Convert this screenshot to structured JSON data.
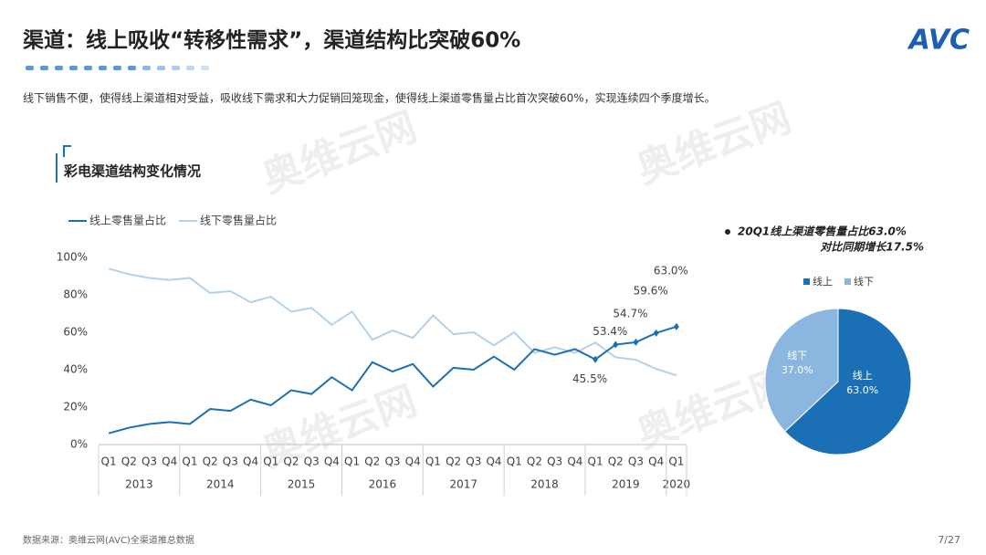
{
  "header": {
    "title": "渠道：线上吸收“转移性需求”，渠道结构比突破60%",
    "logo": "AVC"
  },
  "subtitle": "线下销售不便，使得线上渠道相对受益，吸收线下需求和大力促销回笼现金，使得线上渠道零售量占比首次突破60%，实现连续四个季度增长。",
  "watermark": "奥维云网",
  "chart_data": [
    {
      "type": "line",
      "title": "彩电渠道结构变化情况",
      "categories": [
        "Q1",
        "Q2",
        "Q3",
        "Q4",
        "Q1",
        "Q2",
        "Q3",
        "Q4",
        "Q1",
        "Q2",
        "Q3",
        "Q4",
        "Q1",
        "Q2",
        "Q3",
        "Q4",
        "Q1",
        "Q2",
        "Q3",
        "Q4",
        "Q1",
        "Q2",
        "Q3",
        "Q4",
        "Q1",
        "Q2",
        "Q3",
        "Q4",
        "Q1"
      ],
      "years": [
        "2013",
        "2014",
        "2015",
        "2016",
        "2017",
        "2018",
        "2019",
        "2020"
      ],
      "series": [
        {
          "name": "线上零售量占比",
          "color": "#1a6fb5",
          "values": [
            6,
            9,
            11,
            12,
            11,
            19,
            18,
            24,
            21,
            29,
            27,
            36,
            29,
            44,
            39,
            43,
            31,
            41,
            40,
            47,
            40,
            51,
            48,
            51,
            45.5,
            53.4,
            54.7,
            59.6,
            63.0
          ],
          "value_labels": [
            null,
            null,
            null,
            null,
            null,
            null,
            null,
            null,
            null,
            null,
            null,
            null,
            null,
            null,
            null,
            null,
            null,
            null,
            null,
            null,
            null,
            null,
            null,
            null,
            "45.5%",
            "53.4%",
            "54.7%",
            "59.6%",
            "63.0%"
          ]
        },
        {
          "name": "线下零售量占比",
          "color": "#b3d1ea",
          "values": [
            94,
            91,
            89,
            88,
            89,
            81,
            82,
            76,
            79,
            71,
            73,
            64,
            71,
            56,
            61,
            57,
            69,
            59,
            60,
            53,
            60,
            49,
            52,
            49,
            54.5,
            46.6,
            45.3,
            40.4,
            37.0
          ]
        }
      ],
      "ylim": [
        0,
        100
      ],
      "yticks": [
        {
          "value": 0,
          "label": "0%"
        },
        {
          "value": 20,
          "label": "20%"
        },
        {
          "value": 40,
          "label": "40%"
        },
        {
          "value": 60,
          "label": "60%"
        },
        {
          "value": 80,
          "label": "80%"
        },
        {
          "value": 100,
          "label": "100%"
        }
      ]
    },
    {
      "type": "pie",
      "annotation": [
        "20Q1线上渠道零售量占比63.0%",
        "对比同期增长17.5%"
      ],
      "categories": [
        "线上",
        "线下"
      ],
      "values": [
        63.0,
        37.0
      ],
      "value_labels": [
        "63.0%",
        "37.0%"
      ],
      "colors": [
        "#1a6fb5",
        "#8ab6e0"
      ]
    }
  ],
  "footer": {
    "source": "数据来源：奥维云网(AVC)全渠道推总数据",
    "page": "7/27"
  }
}
